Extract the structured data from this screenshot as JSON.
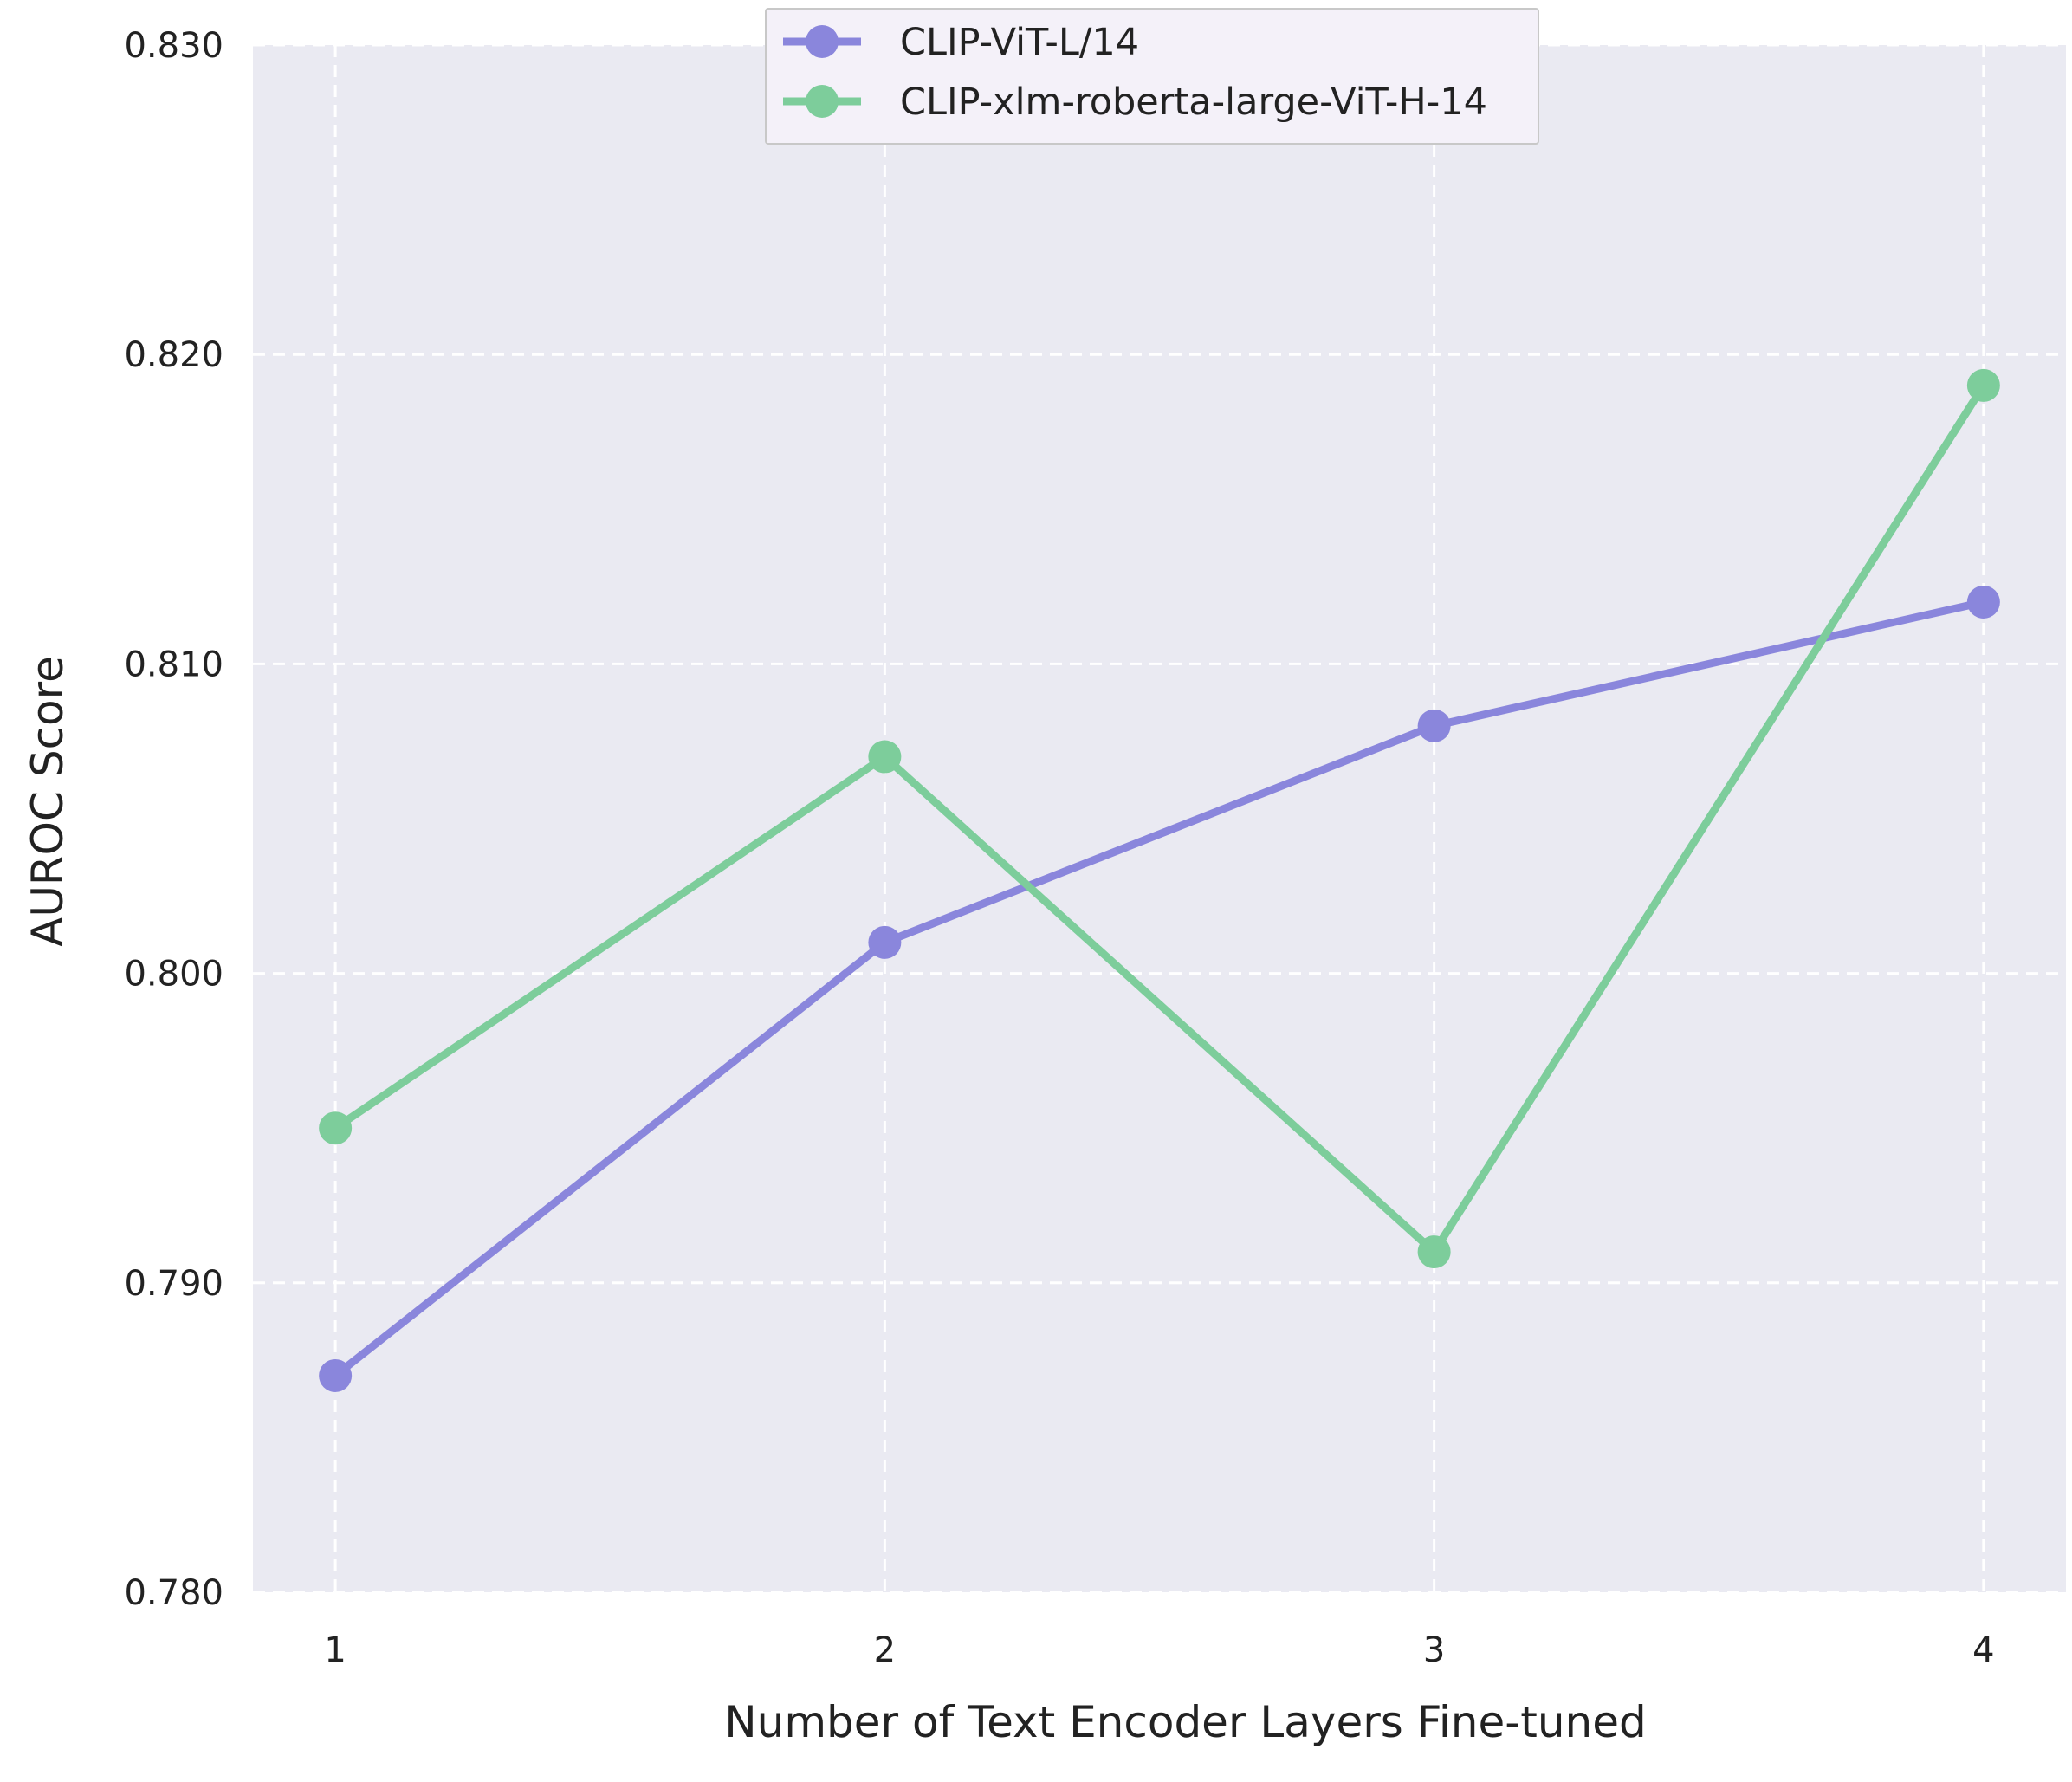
{
  "chart_data": {
    "type": "line",
    "title": "",
    "xlabel": "Number of Text Encoder Layers Fine-tuned",
    "ylabel": "AUROC Score",
    "x": [
      1,
      2,
      3,
      4
    ],
    "x_tick_labels": [
      "1",
      "2",
      "3",
      "4"
    ],
    "xlim": [
      0.85,
      4.15
    ],
    "ylim": [
      0.78,
      0.83
    ],
    "y_ticks": [
      0.78,
      0.79,
      0.8,
      0.81,
      0.82,
      0.83
    ],
    "y_tick_labels": [
      "0.780",
      "0.790",
      "0.800",
      "0.810",
      "0.820",
      "0.830"
    ],
    "grid": true,
    "legend_position": "top-center",
    "series": [
      {
        "name": "CLIP-ViT-L/14",
        "color": "#8a86dc",
        "values": [
          0.787,
          0.801,
          0.808,
          0.812
        ]
      },
      {
        "name": "CLIP-xlm-roberta-large-ViT-H-14",
        "color": "#7dcd9b",
        "values": [
          0.795,
          0.807,
          0.791,
          0.819
        ]
      }
    ],
    "background_color": "#eaeaf2",
    "grid_color": "#ffffff"
  }
}
